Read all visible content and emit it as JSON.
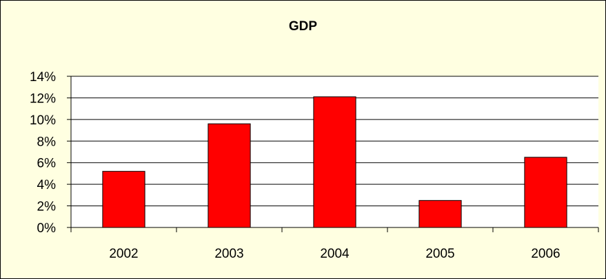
{
  "chart_data": {
    "type": "bar",
    "title": "GDP",
    "xlabel": "",
    "ylabel": "",
    "categories": [
      "2002",
      "2003",
      "2004",
      "2005",
      "2006"
    ],
    "values": [
      0.052,
      0.096,
      0.121,
      0.025,
      0.065
    ],
    "ylim": [
      0,
      0.14
    ],
    "y_ticks": [
      "0%",
      "2%",
      "4%",
      "6%",
      "8%",
      "10%",
      "12%",
      "14%"
    ],
    "grid": true,
    "legend": "none",
    "colors": {
      "bar": "#FF0000",
      "bar_border": "#000000",
      "frame_background": "#FFFFE1",
      "plot_background": "#FFFFFF",
      "gridline": "#000000"
    }
  }
}
